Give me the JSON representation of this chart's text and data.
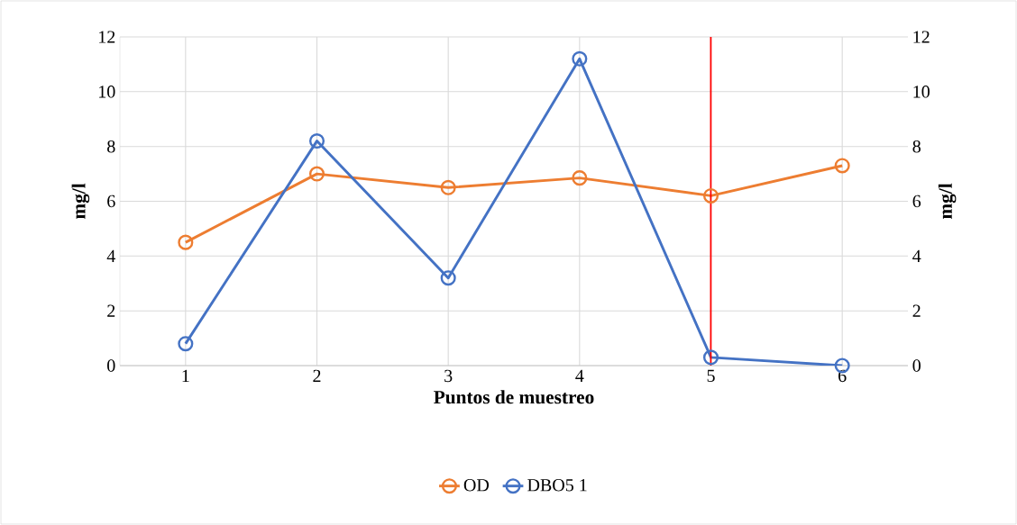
{
  "chart_data": {
    "type": "line",
    "xlabel": "Puntos de muestreo",
    "ylabel": "mg/l",
    "y2label": "mg/l",
    "x": [
      1,
      2,
      3,
      4,
      5,
      6
    ],
    "xlim": [
      0.5,
      6.5
    ],
    "xticks": [
      1,
      2,
      3,
      4,
      5,
      6
    ],
    "ylim": [
      0,
      12
    ],
    "yticks": [
      0,
      2,
      4,
      6,
      8,
      10,
      12
    ],
    "y2lim": [
      0,
      12
    ],
    "y2ticks": [
      0,
      2,
      4,
      6,
      8,
      10,
      12
    ],
    "series": [
      {
        "name": "OD",
        "color": "#ed7d31",
        "values": [
          4.5,
          7.0,
          6.5,
          6.85,
          6.2,
          7.3
        ]
      },
      {
        "name": "DBO5 1",
        "color": "#4472c4",
        "values": [
          0.8,
          8.2,
          3.2,
          11.2,
          0.3,
          0.0
        ]
      }
    ],
    "ref_lines": [
      {
        "axis": "x",
        "value": 5,
        "color": "#ff0000"
      }
    ],
    "grid": true,
    "legend": "bottom",
    "marker": "circle",
    "line_style": "solid"
  }
}
